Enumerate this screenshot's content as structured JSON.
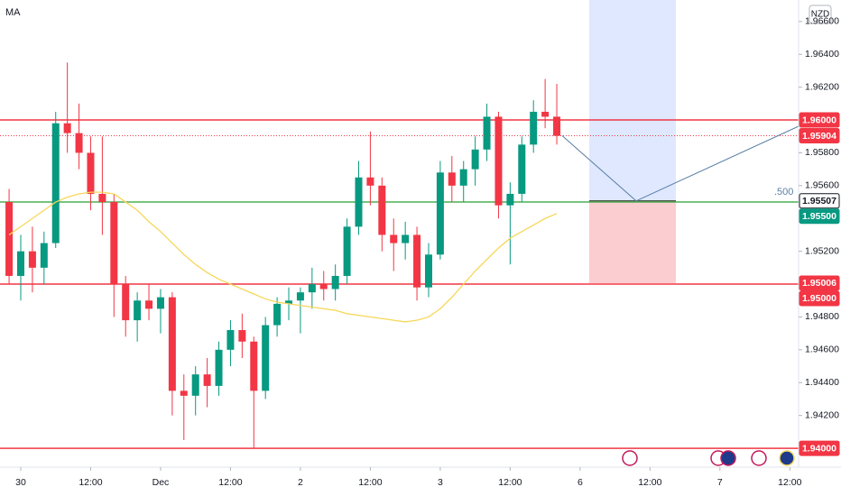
{
  "chart_data": {
    "type": "candlestick",
    "legend": "MA",
    "currency": "NZD",
    "up_color": "#089981",
    "down_color": "#f23645",
    "x": [
      -2,
      0,
      2,
      4,
      6,
      8,
      10,
      12,
      14,
      16,
      18,
      20,
      22,
      24,
      26,
      28,
      30,
      32,
      34,
      36,
      38,
      40,
      42,
      44,
      46,
      48,
      50,
      52,
      54,
      56,
      58,
      60,
      62,
      64,
      66,
      68,
      70,
      72,
      74,
      76,
      78,
      80,
      82,
      84,
      86,
      88,
      90,
      92
    ],
    "open": [
      1.955,
      1.9505,
      1.952,
      1.951,
      1.9525,
      1.9598,
      1.9592,
      1.958,
      1.9555,
      1.955,
      1.95,
      1.9478,
      1.949,
      1.9485,
      1.9492,
      1.9435,
      1.9432,
      1.9445,
      1.9438,
      1.946,
      1.9472,
      1.9465,
      1.9435,
      1.9475,
      1.9488,
      1.949,
      1.9495,
      1.95,
      1.9497,
      1.9505,
      1.9535,
      1.9565,
      1.956,
      1.953,
      1.9525,
      1.953,
      1.9498,
      1.9518,
      1.9568,
      1.956,
      1.957,
      1.9582,
      1.9602,
      1.9548,
      1.9555,
      1.9585,
      1.9605,
      1.9602
    ],
    "high": [
      1.9558,
      1.953,
      1.9535,
      1.9532,
      1.9605,
      1.9635,
      1.961,
      1.959,
      1.959,
      1.9555,
      1.9505,
      1.9495,
      1.95,
      1.9497,
      1.9495,
      1.9445,
      1.945,
      1.9455,
      1.9465,
      1.9478,
      1.9482,
      1.9468,
      1.948,
      1.9492,
      1.9498,
      1.9498,
      1.951,
      1.9508,
      1.9512,
      1.954,
      1.9575,
      1.9593,
      1.9565,
      1.954,
      1.9538,
      1.9535,
      1.9525,
      1.9575,
      1.9578,
      1.9575,
      1.959,
      1.961,
      1.9605,
      1.9562,
      1.959,
      1.9612,
      1.9625,
      1.9622
    ],
    "low": [
      1.95,
      1.949,
      1.9495,
      1.95,
      1.9522,
      1.958,
      1.957,
      1.9545,
      1.953,
      1.948,
      1.9468,
      1.9465,
      1.9478,
      1.947,
      1.942,
      1.9405,
      1.942,
      1.9425,
      1.9432,
      1.945,
      1.9455,
      1.94,
      1.943,
      1.9468,
      1.9478,
      1.947,
      1.9485,
      1.949,
      1.949,
      1.95,
      1.953,
      1.9548,
      1.952,
      1.9508,
      1.9515,
      1.949,
      1.9492,
      1.9515,
      1.955,
      1.955,
      1.956,
      1.9575,
      1.954,
      1.9512,
      1.955,
      1.958,
      1.9595,
      1.9585
    ],
    "close": [
      1.9505,
      1.952,
      1.951,
      1.9525,
      1.9598,
      1.9592,
      1.958,
      1.9555,
      1.955,
      1.95,
      1.9478,
      1.949,
      1.9485,
      1.9492,
      1.9435,
      1.9432,
      1.9445,
      1.9438,
      1.946,
      1.9472,
      1.9465,
      1.9435,
      1.9475,
      1.9488,
      1.949,
      1.9495,
      1.95,
      1.9497,
      1.9505,
      1.9535,
      1.9565,
      1.956,
      1.953,
      1.9525,
      1.953,
      1.9498,
      1.9518,
      1.9568,
      1.956,
      1.957,
      1.9582,
      1.9602,
      1.9548,
      1.9555,
      1.9585,
      1.9605,
      1.9602,
      1.95904
    ],
    "series": [
      {
        "name": "MA",
        "color": "#f7d75a",
        "values": [
          1.953,
          1.9535,
          1.954,
          1.9545,
          1.955,
          1.9553,
          1.9555,
          1.9556,
          1.9556,
          1.9555,
          1.955,
          1.9545,
          1.9538,
          1.9532,
          1.9525,
          1.9518,
          1.9512,
          1.9507,
          1.9503,
          1.95,
          1.9497,
          1.9494,
          1.9491,
          1.9489,
          1.9488,
          1.9487,
          1.9486,
          1.9485,
          1.9484,
          1.9482,
          1.9481,
          1.948,
          1.9479,
          1.9478,
          1.9477,
          1.9478,
          1.948,
          1.9485,
          1.9492,
          1.95,
          1.9508,
          1.9515,
          1.9522,
          1.9528,
          1.9532,
          1.9536,
          1.954,
          1.9543
        ]
      }
    ],
    "ylim": [
      1.93885,
      1.96731
    ],
    "yticks": [
      {
        "value": 1.966,
        "label": "1.96600"
      },
      {
        "value": 1.964,
        "label": "1.96400"
      },
      {
        "value": 1.962,
        "label": "1.96200"
      },
      {
        "value": 1.958,
        "label": "1.95800"
      },
      {
        "value": 1.956,
        "label": "1.95600"
      },
      {
        "value": 1.952,
        "label": "1.95200"
      },
      {
        "value": 1.948,
        "label": "1.94800"
      },
      {
        "value": 1.946,
        "label": "1.94600"
      },
      {
        "value": 1.944,
        "label": "1.94400"
      },
      {
        "value": 1.942,
        "label": "1.94200"
      }
    ],
    "xlim": [
      -3.56,
      133.5
    ],
    "xticks": [
      {
        "value": 0,
        "label": "30"
      },
      {
        "value": 12,
        "label": "12:00"
      },
      {
        "value": 24,
        "label": "Dec"
      },
      {
        "value": 36,
        "label": "12:00"
      },
      {
        "value": 48,
        "label": "2"
      },
      {
        "value": 60,
        "label": "12:00"
      },
      {
        "value": 72,
        "label": "3"
      },
      {
        "value": 84,
        "label": "12:00"
      },
      {
        "value": 96,
        "label": "6"
      },
      {
        "value": 108,
        "label": "12:00"
      },
      {
        "value": 120,
        "label": "7"
      },
      {
        "value": 132,
        "label": "12:00"
      }
    ],
    "levels": [
      {
        "value": 1.96,
        "color": "#f23645"
      },
      {
        "value": 1.955,
        "color": "#4caf50"
      },
      {
        "value": 1.95,
        "color": "#f23645"
      },
      {
        "value": 1.94,
        "color": "#f23645"
      }
    ],
    "price_labels": [
      {
        "value": 1.96,
        "label": "1.96000",
        "color": "#f23645"
      },
      {
        "value": 1.95904,
        "label": "1.95904",
        "color": "#f23645"
      },
      {
        "value": 1.95507,
        "label": "1.95507",
        "color": "#ffffff"
      },
      {
        "value": 1.955,
        "label": "1.95500",
        "color": "#089981"
      },
      {
        "value": 1.95006,
        "label": "1.95006",
        "color": "#f23645"
      },
      {
        "value": 1.95,
        "label": "1.95000",
        "color": "#f23645"
      },
      {
        "value": 1.94,
        "label": "1.94000",
        "color": "#f23645"
      }
    ],
    "annotation": ".500"
  }
}
